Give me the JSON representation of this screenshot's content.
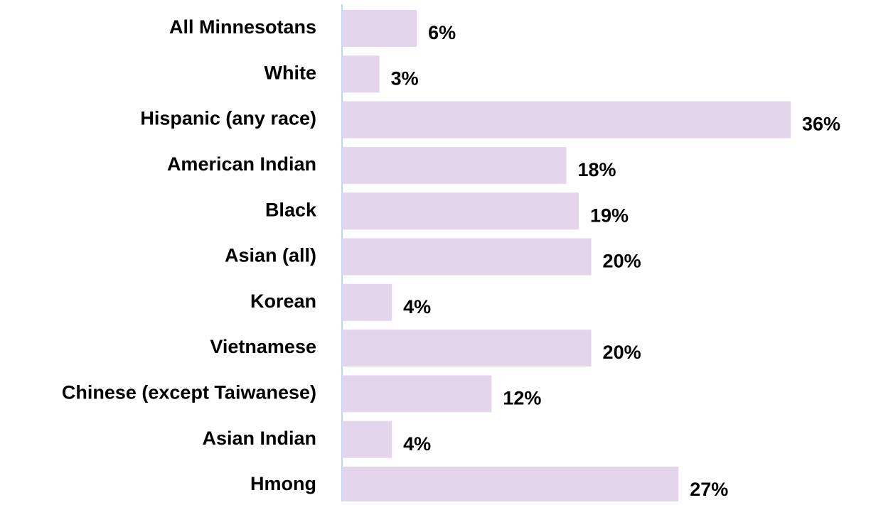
{
  "chart_data": {
    "type": "bar",
    "orientation": "horizontal",
    "categories": [
      "All Minnesotans",
      "White",
      "Hispanic (any race)",
      "American Indian",
      "Black",
      "Asian (all)",
      "Korean",
      "Vietnamese",
      "Chinese (except Taiwanese)",
      "Asian Indian",
      "Hmong"
    ],
    "values": [
      6,
      3,
      36,
      18,
      19,
      20,
      4,
      20,
      12,
      4,
      27
    ],
    "value_labels": [
      "6%",
      "3%",
      "36%",
      "18%",
      "19%",
      "20%",
      "4%",
      "20%",
      "12%",
      "4%",
      "27%"
    ],
    "color": "#e2d5ec"
  }
}
